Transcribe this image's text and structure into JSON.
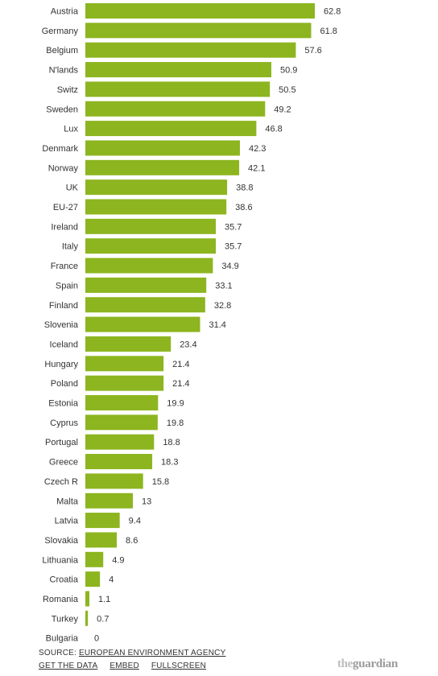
{
  "chart_data": {
    "type": "bar",
    "orientation": "horizontal",
    "categories": [
      "Austria",
      "Germany",
      "Belgium",
      "N'lands",
      "Switz",
      "Sweden",
      "Lux",
      "Denmark",
      "Norway",
      "UK",
      "EU-27",
      "Ireland",
      "Italy",
      "France",
      "Spain",
      "Finland",
      "Slovenia",
      "Iceland",
      "Hungary",
      "Poland",
      "Estonia",
      "Cyprus",
      "Portugal",
      "Greece",
      "Czech R",
      "Malta",
      "Latvia",
      "Slovakia",
      "Lithuania",
      "Croatia",
      "Romania",
      "Turkey",
      "Bulgaria"
    ],
    "values": [
      62.8,
      61.8,
      57.6,
      50.9,
      50.5,
      49.2,
      46.8,
      42.3,
      42.1,
      38.8,
      38.6,
      35.7,
      35.7,
      34.9,
      33.1,
      32.8,
      31.4,
      23.4,
      21.4,
      21.4,
      19.9,
      19.8,
      18.8,
      18.3,
      15.8,
      13,
      9.4,
      8.6,
      4.9,
      4,
      1.1,
      0.7,
      0
    ],
    "value_labels": [
      "62.8",
      "61.8",
      "57.6",
      "50.9",
      "50.5",
      "49.2",
      "46.8",
      "42.3",
      "42.1",
      "38.8",
      "38.6",
      "35.7",
      "35.7",
      "34.9",
      "33.1",
      "32.8",
      "31.4",
      "23.4",
      "21.4",
      "21.4",
      "19.9",
      "19.8",
      "18.8",
      "18.3",
      "15.8",
      "13",
      "9.4",
      "8.6",
      "4.9",
      "4",
      "1.1",
      "0.7",
      "0"
    ],
    "xlim": [
      0,
      62.8
    ],
    "grid": false,
    "bar_color": "#8cb51f"
  },
  "footer": {
    "source_prefix": "SOURCE: ",
    "source_link": "EUROPEAN ENVIRONMENT AGENCY",
    "get_data": "GET THE DATA",
    "embed": "EMBED",
    "fullscreen": "FULLSCREEN"
  },
  "logo": {
    "the": "the",
    "guardian": "guardian"
  }
}
